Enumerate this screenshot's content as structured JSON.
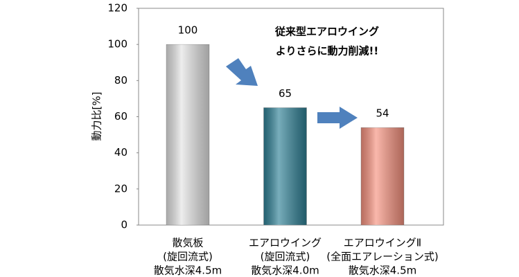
{
  "chart_data": {
    "type": "bar",
    "y_label": "動力比[%]",
    "categories": [
      [
        "散気板",
        "(旋回流式)",
        "散気水深4.5m"
      ],
      [
        "エアロウイング",
        "(旋回流式)",
        "散気水深4.0m"
      ],
      [
        "エアロウイングⅡ",
        "(全面エアレーション式)",
        "散気水深4.5m"
      ]
    ],
    "values": [
      100,
      65,
      54
    ],
    "colors": [
      "#e4e4e4",
      "#2f8196",
      "#f7927f"
    ],
    "value_label_colors": [
      "#000000",
      "#000000",
      "#ff0000"
    ],
    "ylim": [
      0,
      120
    ],
    "yticks": [
      0,
      20,
      40,
      60,
      80,
      100,
      120
    ],
    "annotation": [
      "従来型エアロウイング",
      "よりさらに動力削減!!"
    ],
    "annotation_color": "#ff0000"
  }
}
